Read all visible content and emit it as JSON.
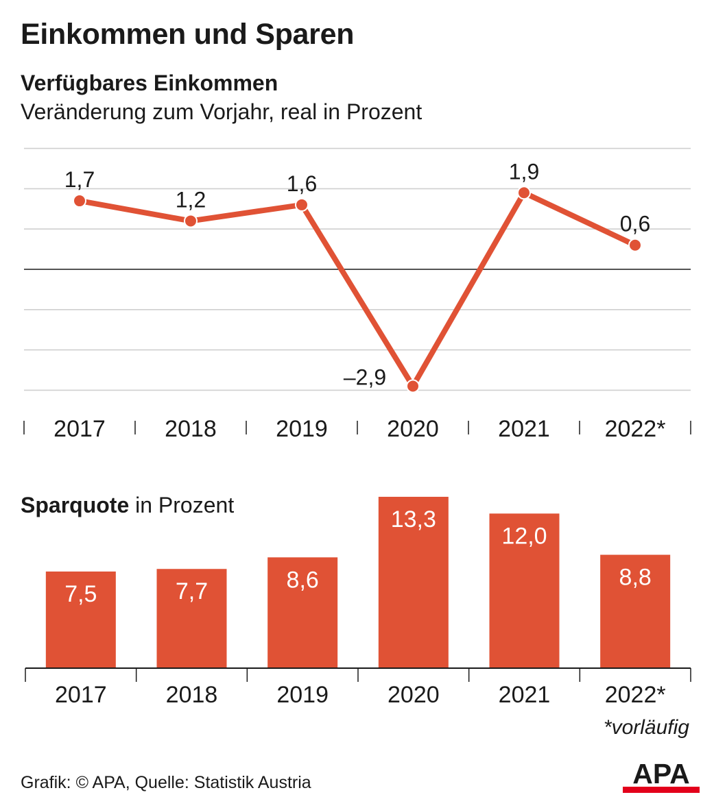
{
  "title": "Einkommen und Sparen",
  "chart_data": [
    {
      "type": "line",
      "title": "Verfügbares Einkommen",
      "subtitle": "Veränderung zum Vorjahr, real in Prozent",
      "categories": [
        "2017",
        "2018",
        "2019",
        "2020",
        "2021",
        "2022*"
      ],
      "values": [
        1.7,
        1.2,
        1.6,
        -2.9,
        1.9,
        0.6
      ],
      "labels": [
        "1,7",
        "1,2",
        "1,6",
        "–2,9",
        "1,9",
        "0,6"
      ],
      "ylim": [
        -3,
        3
      ],
      "grid": true,
      "color": "#e05235"
    },
    {
      "type": "bar",
      "title": "Sparquote",
      "title_suffix": "in Prozent",
      "categories": [
        "2017",
        "2018",
        "2019",
        "2020",
        "2021",
        "2022*"
      ],
      "values": [
        7.5,
        7.7,
        8.6,
        13.3,
        12.0,
        8.8
      ],
      "labels": [
        "7,5",
        "7,7",
        "8,6",
        "13,3",
        "12,0",
        "8,8"
      ],
      "color": "#e05235"
    }
  ],
  "footnote": "*vorläufig",
  "source": "Grafik: © APA, Quelle: Statistik Austria",
  "logo_text": "APA"
}
